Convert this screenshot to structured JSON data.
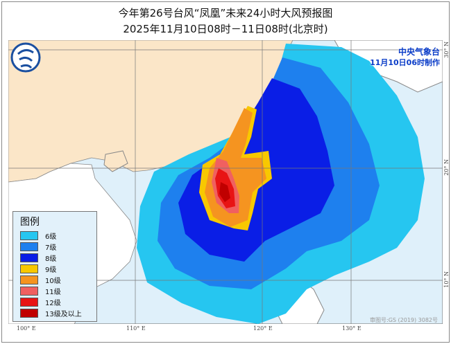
{
  "title": "今年第26号台风“凤凰”未来24小时大风预报图",
  "subtitle": "2025年11月10日08时－11日08时(北京时)",
  "agency": "中央气象台",
  "issued": "11月10日06时制作",
  "legend": {
    "title": "图例",
    "items": [
      {
        "label": "6级",
        "color": "#26c6f0"
      },
      {
        "label": "7级",
        "color": "#1e80ee"
      },
      {
        "label": "8级",
        "color": "#0a1ee6"
      },
      {
        "label": "9级",
        "color": "#f8c800"
      },
      {
        "label": "10级",
        "color": "#f59420"
      },
      {
        "label": "11级",
        "color": "#f06060"
      },
      {
        "label": "12级",
        "color": "#e81414"
      },
      {
        "label": "13级及以上",
        "color": "#c00000"
      }
    ]
  },
  "axes": {
    "lon": [
      "100° E",
      "110° E",
      "120° E",
      "130° E"
    ],
    "lat": [
      "30° N",
      "20° N",
      "10° N"
    ]
  },
  "approval": "审图号:GS (2019) 3082号",
  "colors": {
    "sea": "#dff0fa",
    "land_china": "#fbe6c8",
    "land_other": "#ffffff"
  }
}
